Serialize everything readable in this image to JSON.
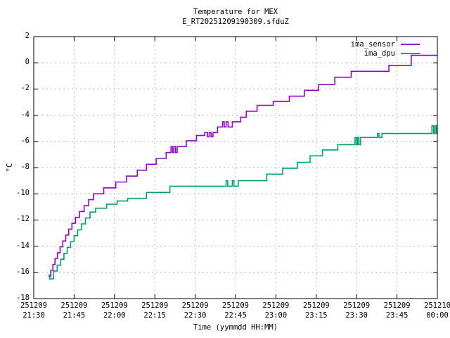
{
  "chart_data": {
    "type": "line",
    "style": "step-after",
    "title": "Temperature for MEX",
    "subtitle": "E_RT20251209190309.sfduZ",
    "xlabel": "Time (yymmdd HH:MM)",
    "ylabel": "°C",
    "grid": true,
    "legend_position": "top-right-inside",
    "x_unit": "minutes after 251209 21:30",
    "xlim": [
      0,
      150
    ],
    "ylim": [
      -18,
      2
    ],
    "x_ticks": [
      {
        "t": 0,
        "date": "251209",
        "time": "21:30"
      },
      {
        "t": 15,
        "date": "251209",
        "time": "21:45"
      },
      {
        "t": 30,
        "date": "251209",
        "time": "22:00"
      },
      {
        "t": 45,
        "date": "251209",
        "time": "22:15"
      },
      {
        "t": 60,
        "date": "251209",
        "time": "22:30"
      },
      {
        "t": 75,
        "date": "251209",
        "time": "22:45"
      },
      {
        "t": 90,
        "date": "251209",
        "time": "23:00"
      },
      {
        "t": 105,
        "date": "251209",
        "time": "23:15"
      },
      {
        "t": 120,
        "date": "251209",
        "time": "23:30"
      },
      {
        "t": 135,
        "date": "251209",
        "time": "23:45"
      },
      {
        "t": 150,
        "date": "251210",
        "time": "00:00"
      }
    ],
    "y_ticks": [
      2,
      0,
      -2,
      -4,
      -6,
      -8,
      -10,
      -12,
      -14,
      -16,
      -18
    ],
    "colors": {
      "grid": "#b0b0b0",
      "frame": "#000000",
      "text": "#000000"
    },
    "series": [
      {
        "name": "ima_sensor",
        "color": "#9400d3",
        "points": [
          [
            5.5,
            -16.3
          ],
          [
            6.3,
            -15.85
          ],
          [
            7.1,
            -15.4
          ],
          [
            7.9,
            -14.95
          ],
          [
            8.8,
            -14.5
          ],
          [
            9.8,
            -14.05
          ],
          [
            10.8,
            -13.6
          ],
          [
            11.9,
            -13.15
          ],
          [
            13.0,
            -12.7
          ],
          [
            14.2,
            -12.25
          ],
          [
            15.5,
            -11.8
          ],
          [
            17.0,
            -11.35
          ],
          [
            18.7,
            -10.9
          ],
          [
            20.4,
            -10.45
          ],
          [
            22.2,
            -10.0
          ],
          [
            26.0,
            -9.55
          ],
          [
            30.5,
            -9.1
          ],
          [
            34.5,
            -8.65
          ],
          [
            38.5,
            -8.2
          ],
          [
            41.9,
            -7.75
          ],
          [
            45.5,
            -7.3
          ],
          [
            49.2,
            -6.85
          ],
          [
            51.0,
            -6.4
          ],
          [
            51.6,
            -6.85
          ],
          [
            52.1,
            -6.4
          ],
          [
            52.7,
            -6.85
          ],
          [
            53.3,
            -6.4
          ],
          [
            56.7,
            -5.95
          ],
          [
            60.5,
            -5.55
          ],
          [
            63.5,
            -5.33
          ],
          [
            64.6,
            -5.65
          ],
          [
            65.2,
            -5.33
          ],
          [
            65.9,
            -5.65
          ],
          [
            66.6,
            -5.33
          ],
          [
            68.3,
            -4.9
          ],
          [
            70.2,
            -4.5
          ],
          [
            70.8,
            -4.9
          ],
          [
            71.5,
            -4.5
          ],
          [
            72.2,
            -4.9
          ],
          [
            73.8,
            -4.5
          ],
          [
            76.9,
            -4.15
          ],
          [
            79.0,
            -3.7
          ],
          [
            83.0,
            -3.25
          ],
          [
            89.0,
            -2.95
          ],
          [
            95.0,
            -2.55
          ],
          [
            100.6,
            -2.1
          ],
          [
            105.9,
            -1.65
          ],
          [
            111.9,
            -1.1
          ],
          [
            118.0,
            -0.65
          ],
          [
            132.0,
            -0.2
          ],
          [
            140.3,
            0.57
          ]
        ]
      },
      {
        "name": "ima_dpu",
        "color": "#009e73",
        "points": [
          [
            5.5,
            -16.2
          ],
          [
            5.9,
            -16.5
          ],
          [
            7.3,
            -15.9
          ],
          [
            8.7,
            -15.45
          ],
          [
            10.0,
            -15.0
          ],
          [
            11.2,
            -14.55
          ],
          [
            12.4,
            -14.1
          ],
          [
            13.7,
            -13.65
          ],
          [
            15.0,
            -13.2
          ],
          [
            16.3,
            -12.75
          ],
          [
            17.7,
            -12.3
          ],
          [
            19.2,
            -11.85
          ],
          [
            20.9,
            -11.4
          ],
          [
            23.0,
            -11.1
          ],
          [
            27.1,
            -10.8
          ],
          [
            31.0,
            -10.55
          ],
          [
            34.9,
            -10.35
          ],
          [
            41.9,
            -9.9
          ],
          [
            50.6,
            -9.42
          ],
          [
            71.5,
            -9.0
          ],
          [
            72.1,
            -9.42
          ],
          [
            73.8,
            -9.0
          ],
          [
            74.4,
            -9.42
          ],
          [
            76.0,
            -9.0
          ],
          [
            86.6,
            -8.5
          ],
          [
            92.5,
            -8.05
          ],
          [
            98.0,
            -7.6
          ],
          [
            102.7,
            -7.1
          ],
          [
            107.3,
            -6.65
          ],
          [
            113.0,
            -6.25
          ],
          [
            119.4,
            -5.7
          ],
          [
            119.9,
            -6.25
          ],
          [
            120.4,
            -5.7
          ],
          [
            120.9,
            -6.25
          ],
          [
            121.5,
            -5.7
          ],
          [
            127.7,
            -5.4
          ],
          [
            128.3,
            -5.7
          ],
          [
            129.4,
            -5.4
          ],
          [
            148.0,
            -4.8
          ],
          [
            148.6,
            -5.4
          ],
          [
            149.1,
            -4.8
          ],
          [
            149.6,
            -5.4
          ],
          [
            149.8,
            -4.8
          ]
        ]
      }
    ]
  }
}
